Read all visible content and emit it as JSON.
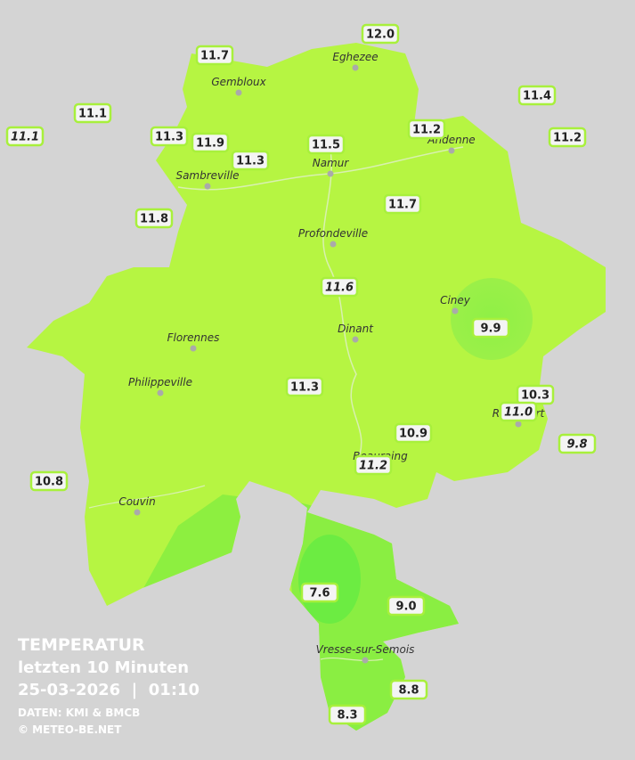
{
  "legend": {
    "title": "TEMPERATUR",
    "period": "letzten 10 Minuten",
    "datetime": "25-03-2026  |  01:10",
    "source": "DATEN: KMI & BMCB",
    "copyright": "© METEO-BE.NET"
  },
  "cities": [
    "Eghezee",
    "Gembloux",
    "Andenne",
    "Namur",
    "Sambreville",
    "Profondeville",
    "Ciney",
    "Dinant",
    "Florennes",
    "Philippeville",
    "Rochefort",
    "Beauraing",
    "Couvin",
    "Vresse-sur-Semois"
  ],
  "stations": [
    "11.7",
    "12.0",
    "11.4",
    "11.1",
    "11.1",
    "11.3",
    "11.9",
    "11.3",
    "11.5",
    "11.2",
    "11.2",
    "11.8",
    "11.7",
    "11.6",
    "9.9",
    "11.3",
    "10.3",
    "11.0",
    "10.9",
    "11.2",
    "9.8",
    "10.8",
    "7.6",
    "9.0",
    "8.8",
    "8.3"
  ]
}
